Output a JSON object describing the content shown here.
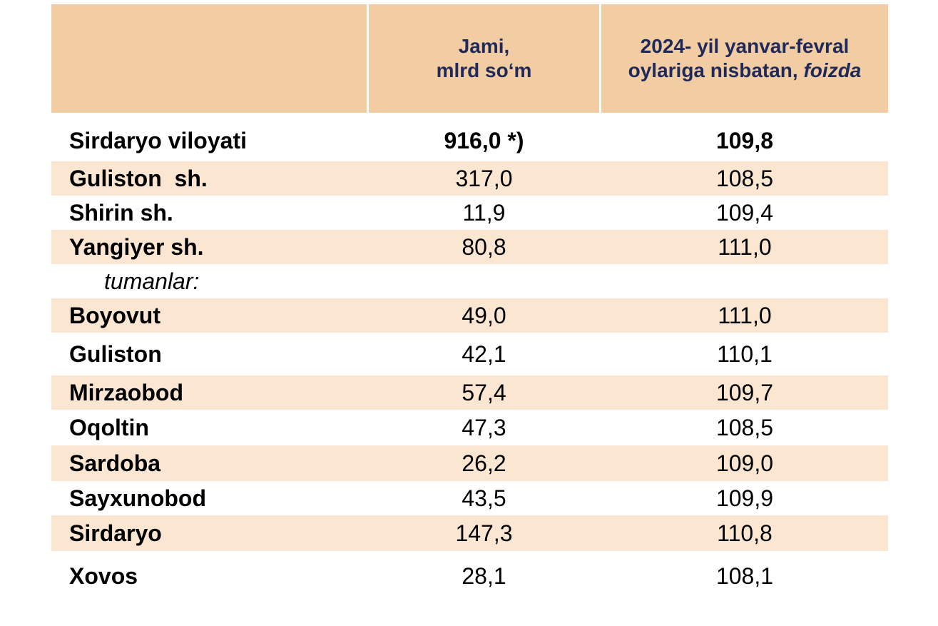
{
  "header": {
    "col_region": "",
    "col_total_line1": "Jami,",
    "col_total_line2": "mlrd so‘m",
    "col_percent_line1": "2024- yil yanvar-fevral",
    "col_percent_line2": "oylariga nisbatan,",
    "col_percent_italic": "foizda"
  },
  "rows": [
    {
      "name": "Sirdaryo viloyati",
      "total": "916,0 *)",
      "percent": "109,8"
    },
    {
      "name": "Guliston  sh.",
      "total": "317,0",
      "percent": "108,5"
    },
    {
      "name": "Shirin sh.",
      "total": "11,9",
      "percent": "109,4"
    },
    {
      "name": "Yangiyer sh.",
      "total": "80,8",
      "percent": "111,0"
    },
    {
      "name": "tumanlar:",
      "total": "",
      "percent": ""
    },
    {
      "name": "Boyovut",
      "total": "49,0",
      "percent": "111,0"
    },
    {
      "name": "Guliston",
      "total": "42,1",
      "percent": "110,1"
    },
    {
      "name": "Mirzaobod",
      "total": "57,4",
      "percent": "109,7"
    },
    {
      "name": "Oqoltin",
      "total": "47,3",
      "percent": "108,5"
    },
    {
      "name": "Sardoba",
      "total": "26,2",
      "percent": "109,0"
    },
    {
      "name": "Sayxunobod",
      "total": "43,5",
      "percent": "109,9"
    },
    {
      "name": "Sirdaryo",
      "total": "147,3",
      "percent": "110,8"
    },
    {
      "name": "Xovos",
      "total": "28,1",
      "percent": "108,1"
    }
  ],
  "colors": {
    "header_bg": "#f2cda3",
    "header_text": "#1f2a5a",
    "stripe_bg": "#fbe6d2"
  }
}
